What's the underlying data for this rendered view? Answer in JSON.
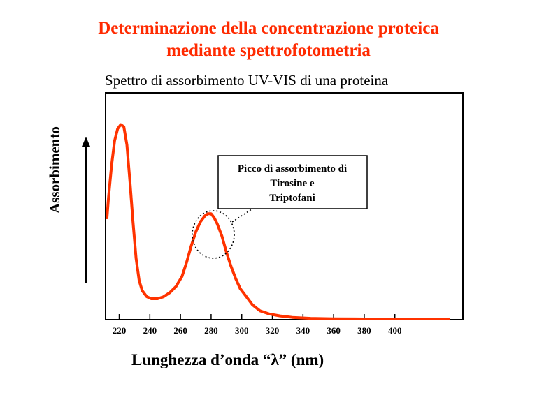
{
  "title_line1": "Determinazione della concentrazione proteica",
  "title_line2": "mediante spettrofotometria",
  "title_color": "#ff2a00",
  "chart_data": {
    "type": "line",
    "title": "Spettro di assorbimento UV-VIS di una proteina",
    "xlabel": "Lunghezza d’onda “λ” (nm)",
    "ylabel": "Assorbimento",
    "xlim": [
      212,
      435
    ],
    "ylim": [
      0,
      1
    ],
    "xticks": [
      220,
      240,
      260,
      280,
      300,
      320,
      340,
      360,
      380,
      400
    ],
    "grid": false,
    "series": [
      {
        "color": "#ff3300",
        "x": [
          212,
          213,
          215,
          217,
          219,
          221,
          223,
          225,
          227,
          229,
          231,
          233,
          235,
          238,
          241,
          245,
          249,
          253,
          257,
          261,
          264,
          267,
          270,
          273,
          276,
          278,
          280,
          282,
          284,
          287,
          290,
          293,
          296,
          299,
          303,
          307,
          312,
          318,
          325,
          333,
          345,
          360,
          380,
          400,
          420,
          435
        ],
        "y": [
          0.5,
          0.6,
          0.76,
          0.88,
          0.94,
          0.96,
          0.95,
          0.86,
          0.68,
          0.48,
          0.3,
          0.19,
          0.14,
          0.11,
          0.1,
          0.1,
          0.11,
          0.13,
          0.16,
          0.21,
          0.28,
          0.36,
          0.43,
          0.48,
          0.51,
          0.52,
          0.52,
          0.5,
          0.47,
          0.41,
          0.33,
          0.26,
          0.2,
          0.15,
          0.11,
          0.07,
          0.04,
          0.025,
          0.015,
          0.008,
          0.003,
          0.001,
          0.0,
          0.0,
          0.0,
          0.0
        ]
      }
    ],
    "annotations": [
      {
        "text_lines": [
          "Picco di assorbimento di",
          "Tirosine e",
          "Triptofani"
        ],
        "x": 280,
        "y": 0.52
      }
    ]
  }
}
